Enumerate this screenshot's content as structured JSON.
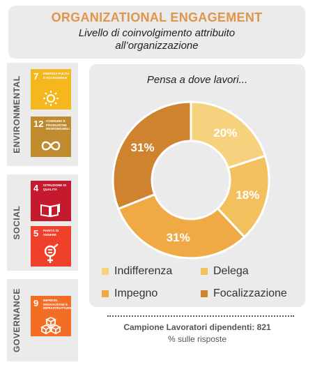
{
  "header": {
    "title": "ORGANIZATIONAL ENGAGEMENT",
    "subtitle_line1": "Livello di coinvolgimento  attribuito",
    "subtitle_line2": "all’organizzazione"
  },
  "categories": {
    "environmental": "ENVIRONMENTAL",
    "social": "SOCIAL",
    "governance": "GOVERNANCE"
  },
  "sdgs": [
    {
      "num": "7",
      "text": "ENERGIA PULITA E ACCESSIBILE",
      "color": "#f4b81e",
      "icon": "sun-icon"
    },
    {
      "num": "12",
      "text": "CONSUMO E PRODUZIONE RESPONSABILI",
      "color": "#bf8b2e",
      "icon": "infinity-loop-icon"
    },
    {
      "num": "4",
      "text": "ISTRUZIONE DI QUALITÀ",
      "color": "#c5192d",
      "icon": "book-icon"
    },
    {
      "num": "5",
      "text": "PARITÀ DI GENERE",
      "color": "#ef402b",
      "icon": "gender-equality-icon"
    },
    {
      "num": "9",
      "text": "IMPRESE, INNOVAZIONE E INFRASTRUTTURE",
      "color": "#f36d25",
      "icon": "cubes-icon"
    }
  ],
  "chart_data": {
    "type": "pie",
    "title": "Pensa a dove lavori...",
    "categories": [
      "Indifferenza",
      "Delega",
      "Impegno",
      "Focalizzazione"
    ],
    "values": [
      20,
      18,
      31,
      31
    ],
    "labels": [
      "20%",
      "18%",
      "31%",
      "31%"
    ],
    "colors": [
      "#f6d27e",
      "#f2c05c",
      "#f0aa45",
      "#d0832f"
    ],
    "donut": true,
    "legend_position": "bottom"
  },
  "footer": {
    "sample": "Campione Lavoratori dipendenti: 821",
    "note": "% sulle risposte"
  }
}
